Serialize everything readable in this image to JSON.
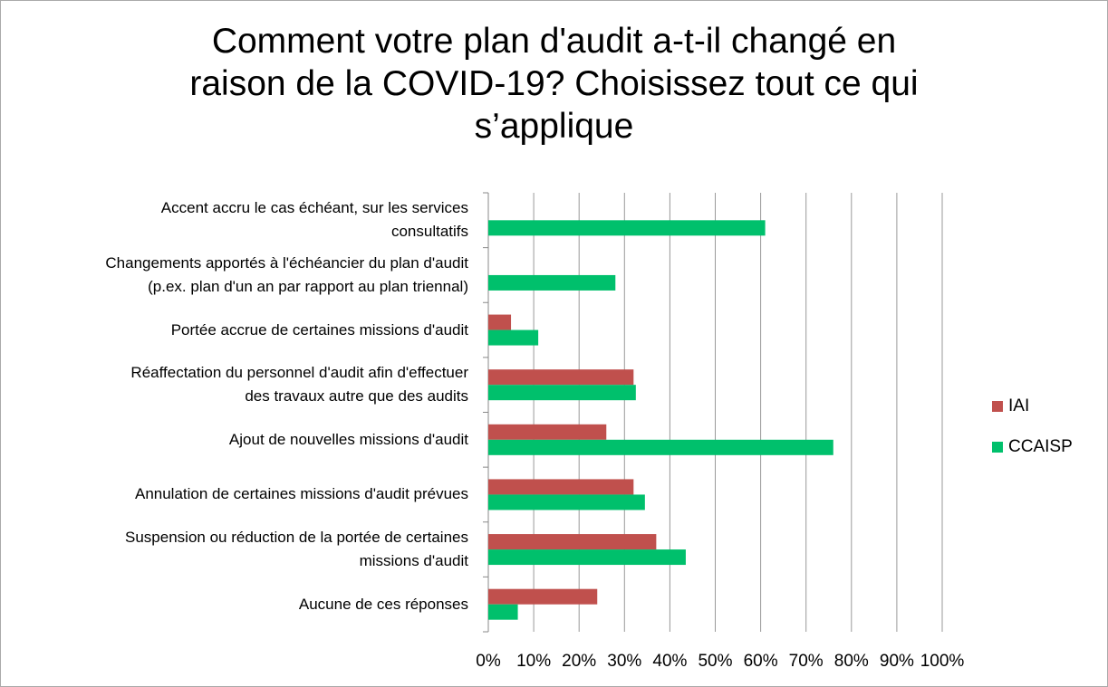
{
  "chart_data": {
    "type": "barh",
    "title": "Comment votre plan d'audit a-t-il changé en\nraison de la COVID-19? Choisissez tout ce qui\ns’applique",
    "categories": [
      "Accent accru le cas échéant, sur les services\nconsultatifs",
      "Changements apportés à l'échéancier du plan d'audit\n(p.ex. plan d'un an par rapport au plan triennal)",
      "Portée accrue de certaines missions d'audit",
      "Réaffectation du personnel d'audit afin d'effectuer\ndes travaux autre que des audits",
      "Ajout de nouvelles missions d'audit",
      "Annulation de certaines missions d'audit prévues",
      "Suspension ou réduction de la portée de certaines\nmissions d'audit",
      "Aucune de ces réponses"
    ],
    "series": [
      {
        "name": "IAI",
        "color": "#c0504d",
        "values": [
          null,
          null,
          5,
          32,
          26,
          32,
          37,
          24
        ]
      },
      {
        "name": "CCAISP",
        "color": "#00c06c",
        "values": [
          61,
          28,
          11,
          32.5,
          76,
          34.5,
          43.5,
          6.5
        ]
      }
    ],
    "xlim": [
      0,
      100
    ],
    "xticks": [
      {
        "value": 0,
        "label": "0%"
      },
      {
        "value": 10,
        "label": "10%"
      },
      {
        "value": 20,
        "label": "20%"
      },
      {
        "value": 30,
        "label": "30%"
      },
      {
        "value": 40,
        "label": "40%"
      },
      {
        "value": 50,
        "label": "50%"
      },
      {
        "value": 60,
        "label": "60%"
      },
      {
        "value": 70,
        "label": "70%"
      },
      {
        "value": 80,
        "label": "80%"
      },
      {
        "value": 90,
        "label": "90%"
      },
      {
        "value": 100,
        "label": "100%"
      }
    ],
    "grid": true,
    "legend": "right"
  }
}
